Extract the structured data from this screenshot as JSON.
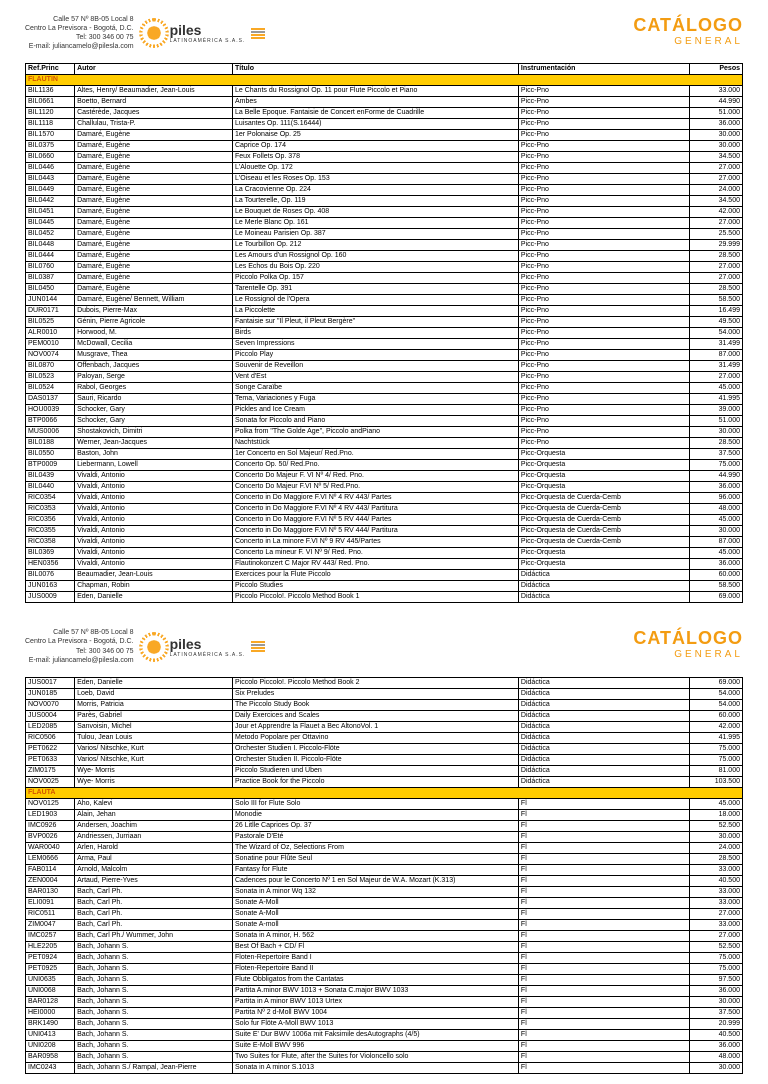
{
  "header": {
    "addr1": "Calle 57 Nº 8B-05 Local 8",
    "addr2": "Centro La Previsora - Bogotá, D.C.",
    "tel": "Tel: 300 346 00 75",
    "email": "E-mail: juliancamelo@pilesla.com",
    "brand": "piles",
    "brandSub": "LATINOAMÉRICA S.A.S.",
    "cat": "CATÁLOGO",
    "catSub": "GENERAL"
  },
  "cols": {
    "ref": "Ref.Princ",
    "autor": "Autor",
    "titulo": "Título",
    "instr": "Instrumentación",
    "pesos": "Pesos"
  },
  "sections": {
    "flautin": "FLAUTIN",
    "flauta": "FLAUTA"
  },
  "rows1": [
    [
      "BIL1136",
      "Altes, Henry/ Beaumadier, Jean-Louis",
      "Le Chants du Rossignol Op. 11 pour  Flute Piccolo et Piano",
      "Picc-Pno",
      "33.000"
    ],
    [
      "BIL0661",
      "Boetto, Bernard",
      "Ambes",
      "Picc-Pno",
      "44.990"
    ],
    [
      "BIL1120",
      "Castérède, Jacques",
      "La Belle Epoque. Fantaisie de Concert enForme de Cuadrille",
      "Picc-Pno",
      "51.000"
    ],
    [
      "BIL1118",
      "Challulau, Trista-P.",
      "Luisantes Op. 111(S.16444)",
      "Picc-Pno",
      "36.000"
    ],
    [
      "BIL1570",
      "Damaré, Eugène",
      "1er Polonaise Op. 25",
      "Picc-Pno",
      "30.000"
    ],
    [
      "BIL0375",
      "Damaré, Eugène",
      "Caprice Op. 174",
      "Picc-Pno",
      "30.000"
    ],
    [
      "BIL0660",
      "Damaré, Eugène",
      "Feux Follets Op. 378",
      "Picc-Pno",
      "34.500"
    ],
    [
      "BIL0446",
      "Damaré, Eugène",
      "L'Alouette Op. 172",
      "Picc-Pno",
      "27.000"
    ],
    [
      "BIL0443",
      "Damaré, Eugène",
      "L'Oiseau et les Roses Op. 153",
      "Picc-Pno",
      "27.000"
    ],
    [
      "BIL0449",
      "Damaré, Eugène",
      "La Cracovienne Op. 224",
      "Picc-Pno",
      "24.000"
    ],
    [
      "BIL0442",
      "Damaré, Eugène",
      "La Tourterelle, Op. 119",
      "Picc-Pno",
      "34.500"
    ],
    [
      "BIL0451",
      "Damaré, Eugène",
      "Le Bouquet de Roses Op. 408",
      "Picc-Pno",
      "42.000"
    ],
    [
      "BIL0445",
      "Damaré, Eugène",
      "Le Merle Blanc Op. 161",
      "Picc-Pno",
      "27.000"
    ],
    [
      "BIL0452",
      "Damaré, Eugène",
      "Le Moineau Parisien Op. 387",
      "Picc-Pno",
      "25.500"
    ],
    [
      "BIL0448",
      "Damaré, Eugène",
      "Le Tourbillon Op. 212",
      "Picc-Pno",
      "29.999"
    ],
    [
      "BIL0444",
      "Damaré, Eugène",
      "Les Amours d'un Rossignol Op. 160",
      "Picc-Pno",
      "28.500"
    ],
    [
      "BIL0760",
      "Damaré, Eugène",
      "Les Echos du Bois Op. 220",
      "Picc-Pno",
      "27.000"
    ],
    [
      "BIL0387",
      "Damaré, Eugène",
      "Piccolo Polka Op. 157",
      "Picc-Pno",
      "27.000"
    ],
    [
      "BIL0450",
      "Damaré, Eugène",
      "Tarentelle Op. 391",
      "Picc-Pno",
      "28.500"
    ],
    [
      "JUN0144",
      "Damaré, Eugène/ Bennett, William",
      "Le Rossignol de l'Opera",
      "Picc-Pno",
      "58.500"
    ],
    [
      "DUR0171",
      "Dubois, Pierre-Max",
      "La Piccolette",
      "Picc-Pno",
      "16.499"
    ],
    [
      "BIL0525",
      "Génin, Pierre Agricole",
      "Fantaisie sur \"Il Pleut, il Pleut Bergère\"",
      "Picc-Pno",
      "49.500"
    ],
    [
      "ALR0010",
      "Horwood, M.",
      "Birds",
      "Picc-Pno",
      "54.000"
    ],
    [
      "PEM0010",
      "McDowall, Cecilia",
      "Seven Impressions",
      "Picc-Pno",
      "31.499"
    ],
    [
      "NOV0074",
      "Musgrave, Thea",
      "Piccolo Play",
      "Picc-Pno",
      "87.000"
    ],
    [
      "BIL0870",
      "Offenbach, Jacques",
      "Souvenir de Reveillon",
      "Picc-Pno",
      "31.499"
    ],
    [
      "BIL0523",
      "Paloyan, Serge",
      "Vent d'Est",
      "Picc-Pno",
      "27.000"
    ],
    [
      "BIL0524",
      "Rabol, Georges",
      "Songe Caraïbe",
      "Picc-Pno",
      "45.000"
    ],
    [
      "DAS0137",
      "Sauri, Ricardo",
      "Tema, Variaciones y Fuga",
      "Picc-Pno",
      "41.995"
    ],
    [
      "HOU0039",
      "Schocker, Gary",
      "Pickles and Ice Cream",
      "Picc-Pno",
      "39.000"
    ],
    [
      "BTP0066",
      "Schocker, Gary",
      "Sonata for Piccolo and Piano",
      "Picc-Pno",
      "51.000"
    ],
    [
      "MUS0006",
      "Shostakovich, Dimitri",
      "Polka from \"The Golde Age\", Piccolo andPiano",
      "Picc-Pno",
      "30.000"
    ],
    [
      "BIL0188",
      "Werner, Jean-Jacques",
      "Nachtstück",
      "Picc-Pno",
      "28.500"
    ],
    [
      "BIL0550",
      "Baston, John",
      "1er Concerto en Sol Majeur/ Red.Pno.",
      "Picc-Orquesta",
      "37.500"
    ],
    [
      "BTP0009",
      "Liebermann, Lowell",
      "Concerto Op. 50/ Red.Pno.",
      "Picc-Orquesta",
      "75.000"
    ],
    [
      "BIL0439",
      "Vivaldi, Antonio",
      "Concerto Do Majeur F. VI Nº 4/ Red. Pno.",
      "Picc-Orquesta",
      "44.990"
    ],
    [
      "BIL0440",
      "Vivaldi, Antonio",
      "Concerto Do Majeur F.VI Nº 5/ Red.Pno.",
      "Picc-Orquesta",
      "36.000"
    ],
    [
      "RIC0354",
      "Vivaldi, Antonio",
      "Concerto in Do Maggiore F.VI Nº 4 RV 443/ Partes",
      "Picc-Orquesta de Cuerda-Cemb",
      "96.000"
    ],
    [
      "RIC0353",
      "Vivaldi, Antonio",
      "Concerto in Do Maggiore F.VI Nº 4 RV 443/ Partitura",
      "Picc-Orquesta de Cuerda-Cemb",
      "48.000"
    ],
    [
      "RIC0356",
      "Vivaldi, Antonio",
      "Concerto in Do Maggiore F.VI Nº 5 RV 444/ Partes",
      "Picc-Orquesta de Cuerda-Cemb",
      "45.000"
    ],
    [
      "RIC0355",
      "Vivaldi, Antonio",
      "Concerto in Do Maggiore F.VI Nº 5 RV 444/ Partitura",
      "Picc-Orquesta de Cuerda-Cemb",
      "30.000"
    ],
    [
      "RIC0358",
      "Vivaldi, Antonio",
      "Concerto in La minore F.VI Nº 9 RV 445/Partes",
      "Picc-Orquesta de Cuerda-Cemb",
      "87.000"
    ],
    [
      "BIL0369",
      "Vivaldi, Antonio",
      "Concerto La mineur F. VI Nº 9/ Red. Pno.",
      "Picc-Orquesta",
      "45.000"
    ],
    [
      "HEN0356",
      "Vivaldi, Antonio",
      "Flautinokonzert C Major RV 443/ Red. Pno.",
      "Picc-Orquesta",
      "36.000"
    ],
    [
      "BIL0076",
      "Beaumadier, Jean-Louis",
      "Exercices pour la Flute Piccolo",
      "Didáctica",
      "60.000"
    ],
    [
      "JUN0163",
      "Chapman, Robin",
      "Piccolo Studies",
      "Didáctica",
      "58.500"
    ],
    [
      "JUS0009",
      "Eden, Danielle",
      "Piccolo Piccolo!. Piccolo Method Book 1",
      "Didáctica",
      "69.000"
    ]
  ],
  "rows2a": [
    [
      "JUS0017",
      "Eden, Danielle",
      "Piccolo Piccolo!. Piccolo Method Book 2",
      "Didáctica",
      "69.000"
    ],
    [
      "JUN0185",
      "Loeb, David",
      "Six Preludes",
      "Didáctica",
      "54.000"
    ],
    [
      "NOV0070",
      "Morris, Patricia",
      "The Piccolo Study Book",
      "Didáctica",
      "54.000"
    ],
    [
      "JUS0004",
      "Parès, Gabriel",
      "Daily Exercices and Scales",
      "Didáctica",
      "60.000"
    ],
    [
      "LED2085",
      "Sanvoisin, Michel",
      "Jour et Apprendre la Flauet a Bec AltonoVol. 1",
      "Didáctica",
      "42.000"
    ],
    [
      "RIC0506",
      "Tulou, Jean Louis",
      "Metodo Popolare per Ottavino",
      "Didáctica",
      "41.995"
    ],
    [
      "PET0622",
      "Varios/ Nitschke, Kurt",
      "Orchester Studien I. Piccolo-Flöte",
      "Didáctica",
      "75.000"
    ],
    [
      "PET0633",
      "Varios/ Nitschke, Kurt",
      "Orchester Studien II. Piccolo-Flöte",
      "Didáctica",
      "75.000"
    ],
    [
      "ZIM0175",
      "Wye- Morris",
      "Piccolo Studieren und Üben",
      "Didáctica",
      "81.000"
    ],
    [
      "NOV0025",
      "Wye- Morris",
      "Practice Book for the Piccolo",
      "Didáctica",
      "103.500"
    ]
  ],
  "rows2b": [
    [
      "NOV0125",
      "Aho, Kalevi",
      "Solo III for Flute Solo",
      "Fl",
      "45.000"
    ],
    [
      "LED1903",
      "Alain, Jehan",
      "Monodie",
      "Fl",
      "18.000"
    ],
    [
      "IMC0926",
      "Andersen, Joachim",
      "26 Litlle Caprices Op. 37",
      "Fl",
      "52.500"
    ],
    [
      "BVP0026",
      "Andriessen, Jurriaan",
      "Pastorale D'Eté",
      "Fl",
      "30.000"
    ],
    [
      "WAR0040",
      "Arlen, Harold",
      "The Wizard of Oz, Selections From",
      "Fl",
      "24.000"
    ],
    [
      "LEM0666",
      "Arma, Paul",
      "Sonatine pour Flûte Seul",
      "Fl",
      "28.500"
    ],
    [
      "FAB0114",
      "Arnold, Malcolm",
      "Fantasy for Flute",
      "Fl",
      "33.000"
    ],
    [
      "ZEN0004",
      "Artaud, Pierre-Yves",
      "Cadences pour le Concerto Nº 1 en Sol Majeur de W.A. Mozart (K.313)",
      "Fl",
      "40.500"
    ],
    [
      "BAR0130",
      "Bach, Carl Ph.",
      "Sonata in A minor Wq 132",
      "Fl",
      "33.000"
    ],
    [
      "ELI0091",
      "Bach, Carl Ph.",
      "Sonate A-Moll",
      "Fl",
      "33.000"
    ],
    [
      "RIC0511",
      "Bach, Carl Ph.",
      "Sonate A-Moll",
      "Fl",
      "27.000"
    ],
    [
      "ZIM0047",
      "Bach, Carl Ph.",
      "Sonate A-moll",
      "Fl",
      "33.000"
    ],
    [
      "IMC0257",
      "Bach, Carl Ph./ Wummer, John",
      "Sonata in A minor, H. 562",
      "Fl",
      "27.000"
    ],
    [
      "HLE2205",
      "Bach, Johann S.",
      "Best Of Bach + CD/ Fl",
      "Fl",
      "52.500"
    ],
    [
      "PET0924",
      "Bach, Johann S.",
      "Floten-Repertoire Band I",
      "Fl",
      "75.000"
    ],
    [
      "PET0925",
      "Bach, Johann S.",
      "Floten-Repertoire Band II",
      "Fl",
      "75.000"
    ],
    [
      "UNI0635",
      "Bach, Johann S.",
      "Flute Obbligatos from the Cantatas",
      "Fl",
      "97.500"
    ],
    [
      "UNI0068",
      "Bach, Johann S.",
      "Partita A.minor BWV 1013 + Sonata C.major BWV 1033",
      "Fl",
      "36.000"
    ],
    [
      "BAR0128",
      "Bach, Johann S.",
      "Partita in A minor BWV 1013 Urtex",
      "Fl",
      "30.000"
    ],
    [
      "HEI0000",
      "Bach, Johann S.",
      "Partita Nº 2 d-Moll BWV 1004",
      "Fl",
      "37.500"
    ],
    [
      "BRK1490",
      "Bach, Johann S.",
      "Solo fur Flöte A-Moll BWV 1013",
      "Fl",
      "20.999"
    ],
    [
      "UNI0413",
      "Bach, Johann S.",
      "Suite E' Dur BWV 1006a mit Faksimile desAutographs (4/5)",
      "Fl",
      "40.500"
    ],
    [
      "UNI0208",
      "Bach, Johann S.",
      "Suite E-Moll BWV 996",
      "Fl",
      "36.000"
    ],
    [
      "BAR0958",
      "Bach, Johann S.",
      "Two Suites for Flute, after the Suites for Violoncello solo",
      "Fl",
      "48.000"
    ],
    [
      "IMC0243",
      "Bach, Johann S./ Rampal, Jean-Pierre",
      "Sonata in A minor S.1013",
      "Fl",
      "30.000"
    ]
  ]
}
